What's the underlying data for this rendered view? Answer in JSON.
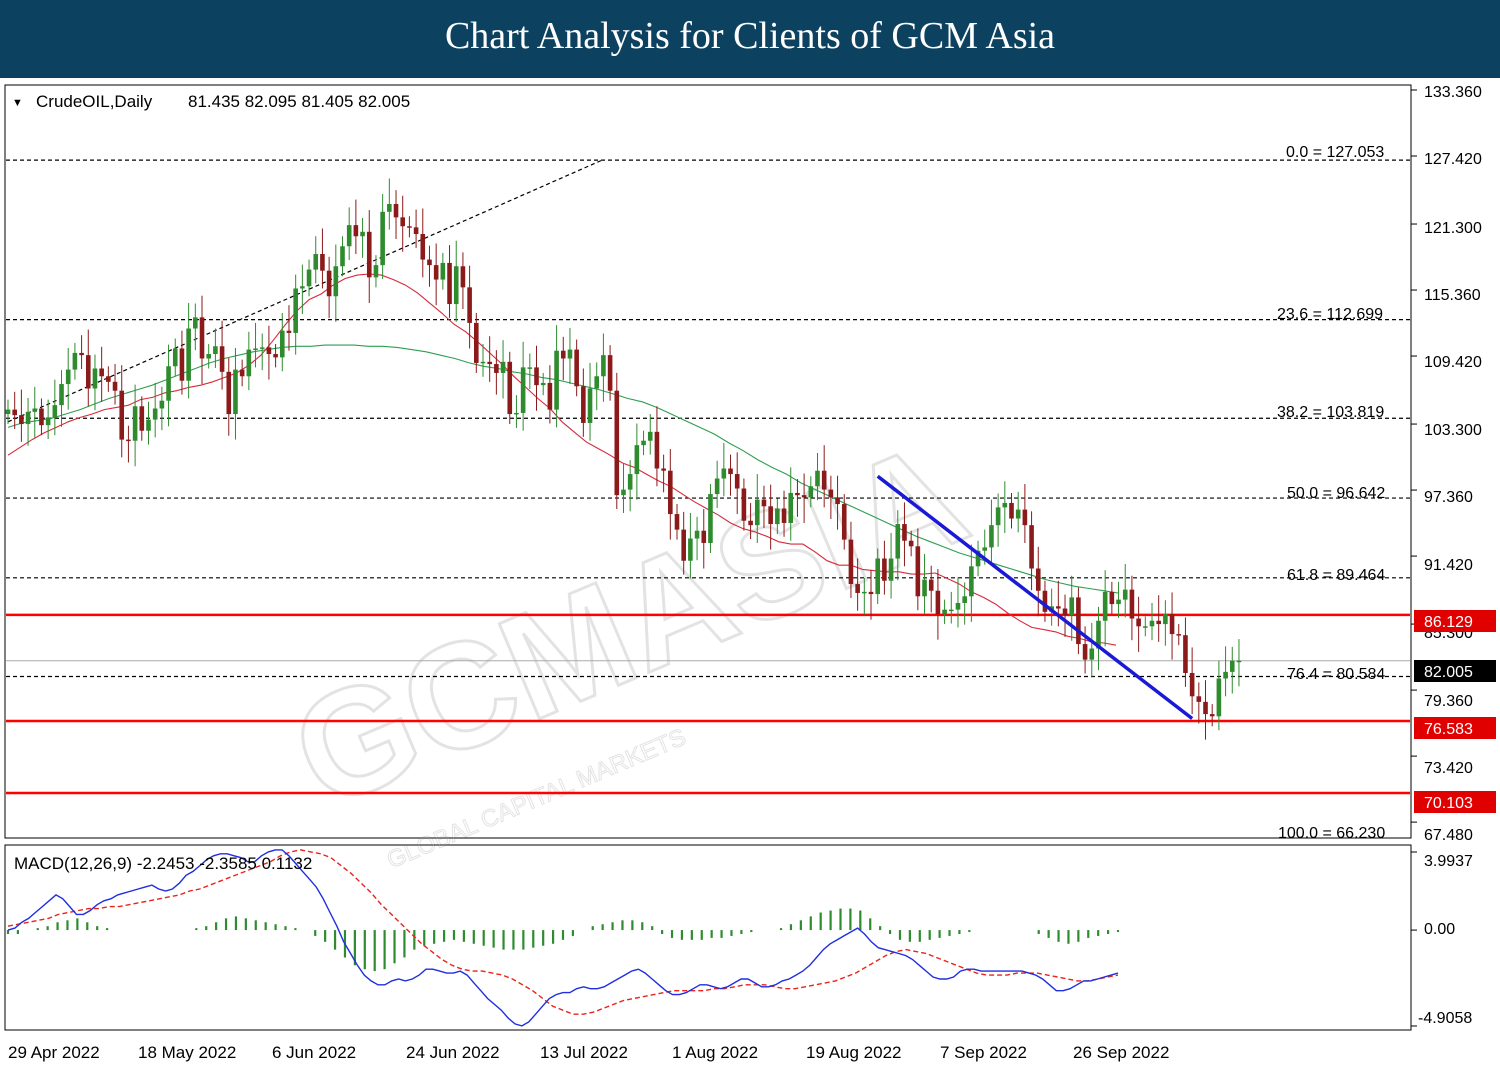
{
  "header": {
    "title": "Chart Analysis for Clients of GCM Asia"
  },
  "chart_data": [
    {
      "type": "candlestick",
      "title": "CrudeOIL,Daily",
      "ohlc": "81.435 82.095 81.405 82.005",
      "symbol_marker": "▼",
      "ylim": [
        66.23,
        133.36
      ],
      "price_ticks": [
        "133.360",
        "127.420",
        "121.300",
        "115.360",
        "109.420",
        "103.300",
        "97.360",
        "91.420",
        "85.300",
        "79.360",
        "73.420",
        "67.480"
      ],
      "fibonacci": [
        {
          "level": "0.0",
          "value": 127.053,
          "text": "0.0 = 127.053"
        },
        {
          "level": "23.6",
          "value": 112.699,
          "text": "23.6 = 112.699"
        },
        {
          "level": "38.2",
          "value": 103.819,
          "text": "38.2 = 103.819"
        },
        {
          "level": "50.0",
          "value": 96.642,
          "text": "50.0 = 96.642"
        },
        {
          "level": "61.8",
          "value": 89.464,
          "text": "61.8 = 89.464"
        },
        {
          "level": "76.4",
          "value": 80.584,
          "text": "76.4 = 80.584"
        },
        {
          "level": "100.0",
          "value": 66.23,
          "text": "100.0 = 66.230"
        }
      ],
      "horizontal_levels": [
        {
          "value": 86.129,
          "label": "86.129",
          "color": "#ff0000"
        },
        {
          "value": 76.583,
          "label": "76.583",
          "color": "#ff0000"
        },
        {
          "value": 70.103,
          "label": "70.103",
          "color": "#ff0000"
        }
      ],
      "current_price": {
        "value": 82.005,
        "label": "82.005"
      },
      "trendline": {
        "from": [
          "22 Aug 2022",
          98.6
        ],
        "to": [
          "6 Oct 2022",
          76.8
        ],
        "color": "#1a1ad6"
      },
      "fib_anchor_line": {
        "from": [
          "29 Apr 2022",
          103.5
        ],
        "to": [
          "26 Jul 2022",
          127.1
        ]
      },
      "x_labels": [
        "29 Apr 2022",
        "18 May 2022",
        "6 Jun 2022",
        "24 Jun 2022",
        "13 Jul 2022",
        "1 Aug 2022",
        "19 Aug 2022",
        "7 Sep 2022",
        "26 Sep 2022"
      ],
      "closes": [
        104.6,
        104.1,
        103.3,
        104.4,
        104.7,
        103.2,
        103.9,
        105.0,
        106.9,
        108.2,
        109.7,
        109.5,
        106.5,
        108.3,
        107.6,
        107.1,
        106.3,
        101.9,
        101.8,
        104.9,
        102.7,
        103.7,
        104.7,
        105.4,
        108.5,
        110.1,
        107.2,
        111.9,
        112.9,
        109.2,
        109.6,
        110.3,
        108.0,
        104.2,
        108.2,
        107.6,
        110.0,
        110.1,
        110.2,
        109.6,
        109.3,
        111.7,
        111.5,
        115.5,
        115.7,
        117.2,
        118.6,
        117.1,
        114.8,
        117.5,
        119.3,
        121.2,
        120.2,
        120.6,
        116.5,
        117.6,
        122.4,
        123.1,
        121.9,
        121.1,
        121.0,
        120.4,
        118.1,
        117.6,
        116.3,
        117.8,
        114.1,
        117.5,
        115.6,
        112.4,
        108.8,
        108.9,
        108.7,
        107.9,
        108.9,
        104.2,
        104.3,
        108.4,
        108.4,
        106.8,
        107.0,
        104.6,
        109.9,
        109.2,
        110.0,
        106.7,
        103.4,
        106.5,
        107.6,
        109.5,
        106.3,
        96.9,
        97.4,
        98.8,
        101.4,
        101.8,
        102.6,
        99.3,
        99.1,
        95.2,
        93.8,
        91.0,
        93.0,
        93.7,
        92.6,
        97.0,
        98.4,
        99.3,
        98.8,
        97.5,
        94.6,
        94.2,
        96.5,
        95.9,
        94.3,
        95.7,
        94.4,
        97.1,
        96.9,
        96.7,
        97.7,
        99.1,
        97.4,
        96.7,
        96.1,
        92.9,
        88.9,
        88.1,
        88.2,
        88.0,
        91.2,
        89.2,
        91.2,
        94.3,
        92.8,
        92.3,
        87.8,
        89.3,
        88.3,
        86.2,
        86.6,
        86.6,
        87.2,
        87.8,
        90.5,
        91.9,
        92.2,
        94.2,
        95.8,
        96.2,
        94.8,
        95.6,
        94.2,
        90.3,
        88.3,
        86.4,
        86.9,
        86.7,
        86.1,
        87.7,
        83.5,
        82.1,
        83.1,
        85.6,
        88.2,
        87.1,
        87.5,
        88.4,
        85.8,
        85.1,
        85.1,
        85.6,
        85.3,
        86.2,
        84.4,
        84.3,
        80.9,
        78.8,
        78.3,
        77.2,
        77.0,
        80.4,
        81.0,
        82.0,
        82.0
      ],
      "ma_fast": [
        100.5,
        101.2,
        101.9,
        102.5,
        103.0,
        103.5,
        103.9,
        104.2,
        104.6,
        104.8,
        105.0,
        105.5,
        105.7,
        106.1,
        106.3,
        106.6,
        106.8,
        107.1,
        107.5,
        107.9,
        108.6,
        109.5,
        110.8,
        112.2,
        113.5,
        114.5,
        115.0,
        115.8,
        116.4,
        116.7,
        116.8,
        116.7,
        116.3,
        115.8,
        115.1,
        114.2,
        113.3,
        112.3,
        111.6,
        110.7,
        109.7,
        108.7,
        107.6,
        106.6,
        105.6,
        104.7,
        103.5,
        102.6,
        101.7,
        101.1,
        100.5,
        99.8,
        99.4,
        98.8,
        98.2,
        97.7,
        97.0,
        96.3,
        95.7,
        95.1,
        94.4,
        93.9,
        93.6,
        93.2,
        92.7,
        92.5,
        92.5,
        91.8,
        91.0,
        90.6,
        90.6,
        90.2,
        90.1,
        90.0,
        90.0,
        89.8,
        89.8,
        89.9,
        89.4,
        88.9,
        88.2,
        87.7,
        87.1,
        86.3,
        85.6,
        85.0,
        84.8,
        84.6,
        84.2,
        84.0,
        83.7,
        83.6,
        83.4
      ],
      "ma_slow": [
        103.0,
        103.4,
        103.6,
        103.8,
        104.2,
        104.6,
        105.1,
        105.6,
        106.0,
        106.4,
        106.8,
        107.3,
        107.8,
        108.3,
        108.8,
        109.2,
        109.5,
        109.8,
        110.0,
        110.2,
        110.3,
        110.3,
        110.4,
        110.4,
        110.4,
        110.3,
        110.3,
        110.2,
        110.0,
        109.8,
        109.5,
        109.2,
        108.8,
        108.5,
        108.3,
        108.0,
        107.8,
        107.5,
        107.3,
        107.0,
        106.7,
        106.4,
        106.0,
        105.6,
        105.3,
        104.8,
        104.2,
        103.6,
        103.0,
        102.4,
        101.6,
        100.9,
        100.1,
        99.4,
        98.8,
        98.0,
        97.4,
        96.8,
        96.2,
        95.6,
        95.0,
        94.4,
        93.8,
        93.2,
        92.7,
        92.2,
        91.7,
        91.3,
        90.9,
        90.5,
        90.1,
        89.7,
        89.3,
        89.0,
        88.7,
        88.5,
        88.3,
        88.1
      ]
    },
    {
      "type": "macd",
      "title": "MACD(12,26,9) -2.2453 -2.3585 0.1132",
      "ylim": [
        -4.9058,
        3.9937
      ],
      "ticks": [
        "3.9937",
        "0.00",
        "-4.9058"
      ],
      "macd": [
        0,
        0.1,
        0.4,
        0.6,
        0.9,
        1.2,
        1.5,
        1.8,
        1.6,
        1.2,
        0.8,
        0.8,
        1.0,
        1.3,
        1.5,
        1.6,
        1.8,
        1.9,
        2.0,
        2.1,
        2.2,
        2.3,
        2.1,
        2.0,
        2.1,
        2.4,
        2.8,
        3.0,
        3.3,
        3.6,
        3.8,
        3.9,
        3.9,
        3.8,
        3.7,
        3.5,
        3.5,
        3.8,
        4.0,
        4.1,
        4.1,
        3.8,
        3.4,
        3.0,
        2.6,
        2.2,
        1.6,
        0.9,
        0.2,
        -0.6,
        -1.2,
        -1.8,
        -2.3,
        -2.6,
        -2.8,
        -2.8,
        -2.6,
        -2.5,
        -2.6,
        -2.5,
        -2.3,
        -2.0,
        -2.0,
        -2.1,
        -2.2,
        -2.2,
        -2.1,
        -2.3,
        -2.7,
        -3.1,
        -3.5,
        -3.8,
        -4.1,
        -4.5,
        -4.8,
        -4.9,
        -4.7,
        -4.3,
        -3.9,
        -3.5,
        -3.3,
        -3.2,
        -3.2,
        -3.0,
        -2.9,
        -3.0,
        -3.0,
        -2.9,
        -2.7,
        -2.5,
        -2.3,
        -2.1,
        -2.0,
        -2.2,
        -2.5,
        -2.8,
        -3.1,
        -3.3,
        -3.3,
        -3.2,
        -3.0,
        -2.8,
        -2.8,
        -2.9,
        -3.0,
        -2.9,
        -2.7,
        -2.5,
        -2.5,
        -2.7,
        -2.9,
        -2.9,
        -2.8,
        -2.6,
        -2.5,
        -2.3,
        -2.1,
        -1.8,
        -1.4,
        -1.0,
        -0.7,
        -0.5,
        -0.3,
        -0.1,
        0.1,
        -0.2,
        -0.6,
        -0.9,
        -1.0,
        -1.1,
        -1.2,
        -1.3,
        -1.5,
        -1.8,
        -2.1,
        -2.4,
        -2.5,
        -2.5,
        -2.4,
        -2.1,
        -2.0,
        -2.0,
        -2.1,
        -2.1,
        -2.1,
        -2.1,
        -2.1,
        -2.1,
        -2.1,
        -2.2,
        -2.3,
        -2.5,
        -2.8,
        -3.1,
        -3.1,
        -3.0,
        -2.8,
        -2.6,
        -2.6,
        -2.5,
        -2.4,
        -2.3,
        -2.2
      ],
      "signal": [
        0.2,
        0.3,
        0.4,
        0.5,
        0.6,
        0.8,
        0.9,
        1.0,
        1.1,
        1.1,
        1.2,
        1.2,
        1.3,
        1.4,
        1.5,
        1.6,
        1.7,
        1.8,
        2.0,
        2.1,
        2.3,
        2.5,
        2.7,
        2.9,
        3.1,
        3.3,
        3.5,
        3.8,
        4.0,
        4.1,
        4.0,
        3.9,
        3.7,
        3.3,
        2.9,
        2.4,
        1.9,
        1.3,
        0.8,
        0.3,
        -0.2,
        -0.7,
        -1.1,
        -1.5,
        -1.8,
        -2.0,
        -2.1,
        -2.1,
        -2.2,
        -2.3,
        -2.5,
        -2.8,
        -3.1,
        -3.5,
        -3.9,
        -4.1,
        -4.3,
        -4.3,
        -4.2,
        -4.0,
        -3.8,
        -3.6,
        -3.5,
        -3.4,
        -3.3,
        -3.2,
        -3.1,
        -3.1,
        -3.1,
        -3.1,
        -3.0,
        -3.0,
        -2.9,
        -2.8,
        -2.8,
        -2.8,
        -2.9,
        -3.0,
        -3.0,
        -2.9,
        -2.8,
        -2.7,
        -2.6,
        -2.4,
        -2.2,
        -1.9,
        -1.6,
        -1.3,
        -1.1,
        -1.0,
        -1.1,
        -1.2,
        -1.4,
        -1.6,
        -1.8,
        -2.0,
        -2.2,
        -2.3,
        -2.3,
        -2.3,
        -2.2,
        -2.2,
        -2.2,
        -2.3,
        -2.4,
        -2.5,
        -2.6,
        -2.6,
        -2.5,
        -2.4,
        -2.3
      ],
      "histogram": [
        -0.2,
        -0.2,
        0,
        0.1,
        0.2,
        0.4,
        0.5,
        0.6,
        0.4,
        0.2,
        0.1,
        0,
        0,
        0,
        0,
        0,
        0,
        0,
        0,
        0.1,
        0.2,
        0.4,
        0.6,
        0.7,
        0.6,
        0.5,
        0.4,
        0.3,
        0.2,
        0.1,
        0,
        -0.3,
        -0.6,
        -1.0,
        -1.4,
        -1.8,
        -2.0,
        -2.1,
        -2.0,
        -1.7,
        -1.4,
        -1.0,
        -0.8,
        -0.7,
        -0.6,
        -0.5,
        -0.6,
        -0.7,
        -0.8,
        -0.9,
        -1.0,
        -1.0,
        -1.0,
        -0.9,
        -0.8,
        -0.7,
        -0.5,
        -0.3,
        0,
        0.2,
        0.3,
        0.4,
        0.5,
        0.5,
        0.4,
        0.2,
        -0.2,
        -0.4,
        -0.5,
        -0.5,
        -0.5,
        -0.4,
        -0.4,
        -0.3,
        -0.2,
        -0.1,
        0,
        0,
        0.1,
        0.3,
        0.5,
        0.7,
        0.9,
        1.0,
        1.1,
        1.1,
        1.0,
        0.6,
        0.2,
        -0.2,
        -0.5,
        -0.6,
        -0.6,
        -0.5,
        -0.4,
        -0.3,
        -0.2,
        -0.1,
        0,
        0,
        0,
        0,
        0,
        0,
        -0.2,
        -0.4,
        -0.6,
        -0.7,
        -0.6,
        -0.4,
        -0.3,
        -0.2,
        -0.1
      ]
    }
  ],
  "watermark": {
    "brand": "GCMASIA",
    "tagline": "GLOBAL CAPITAL MARKETS"
  }
}
